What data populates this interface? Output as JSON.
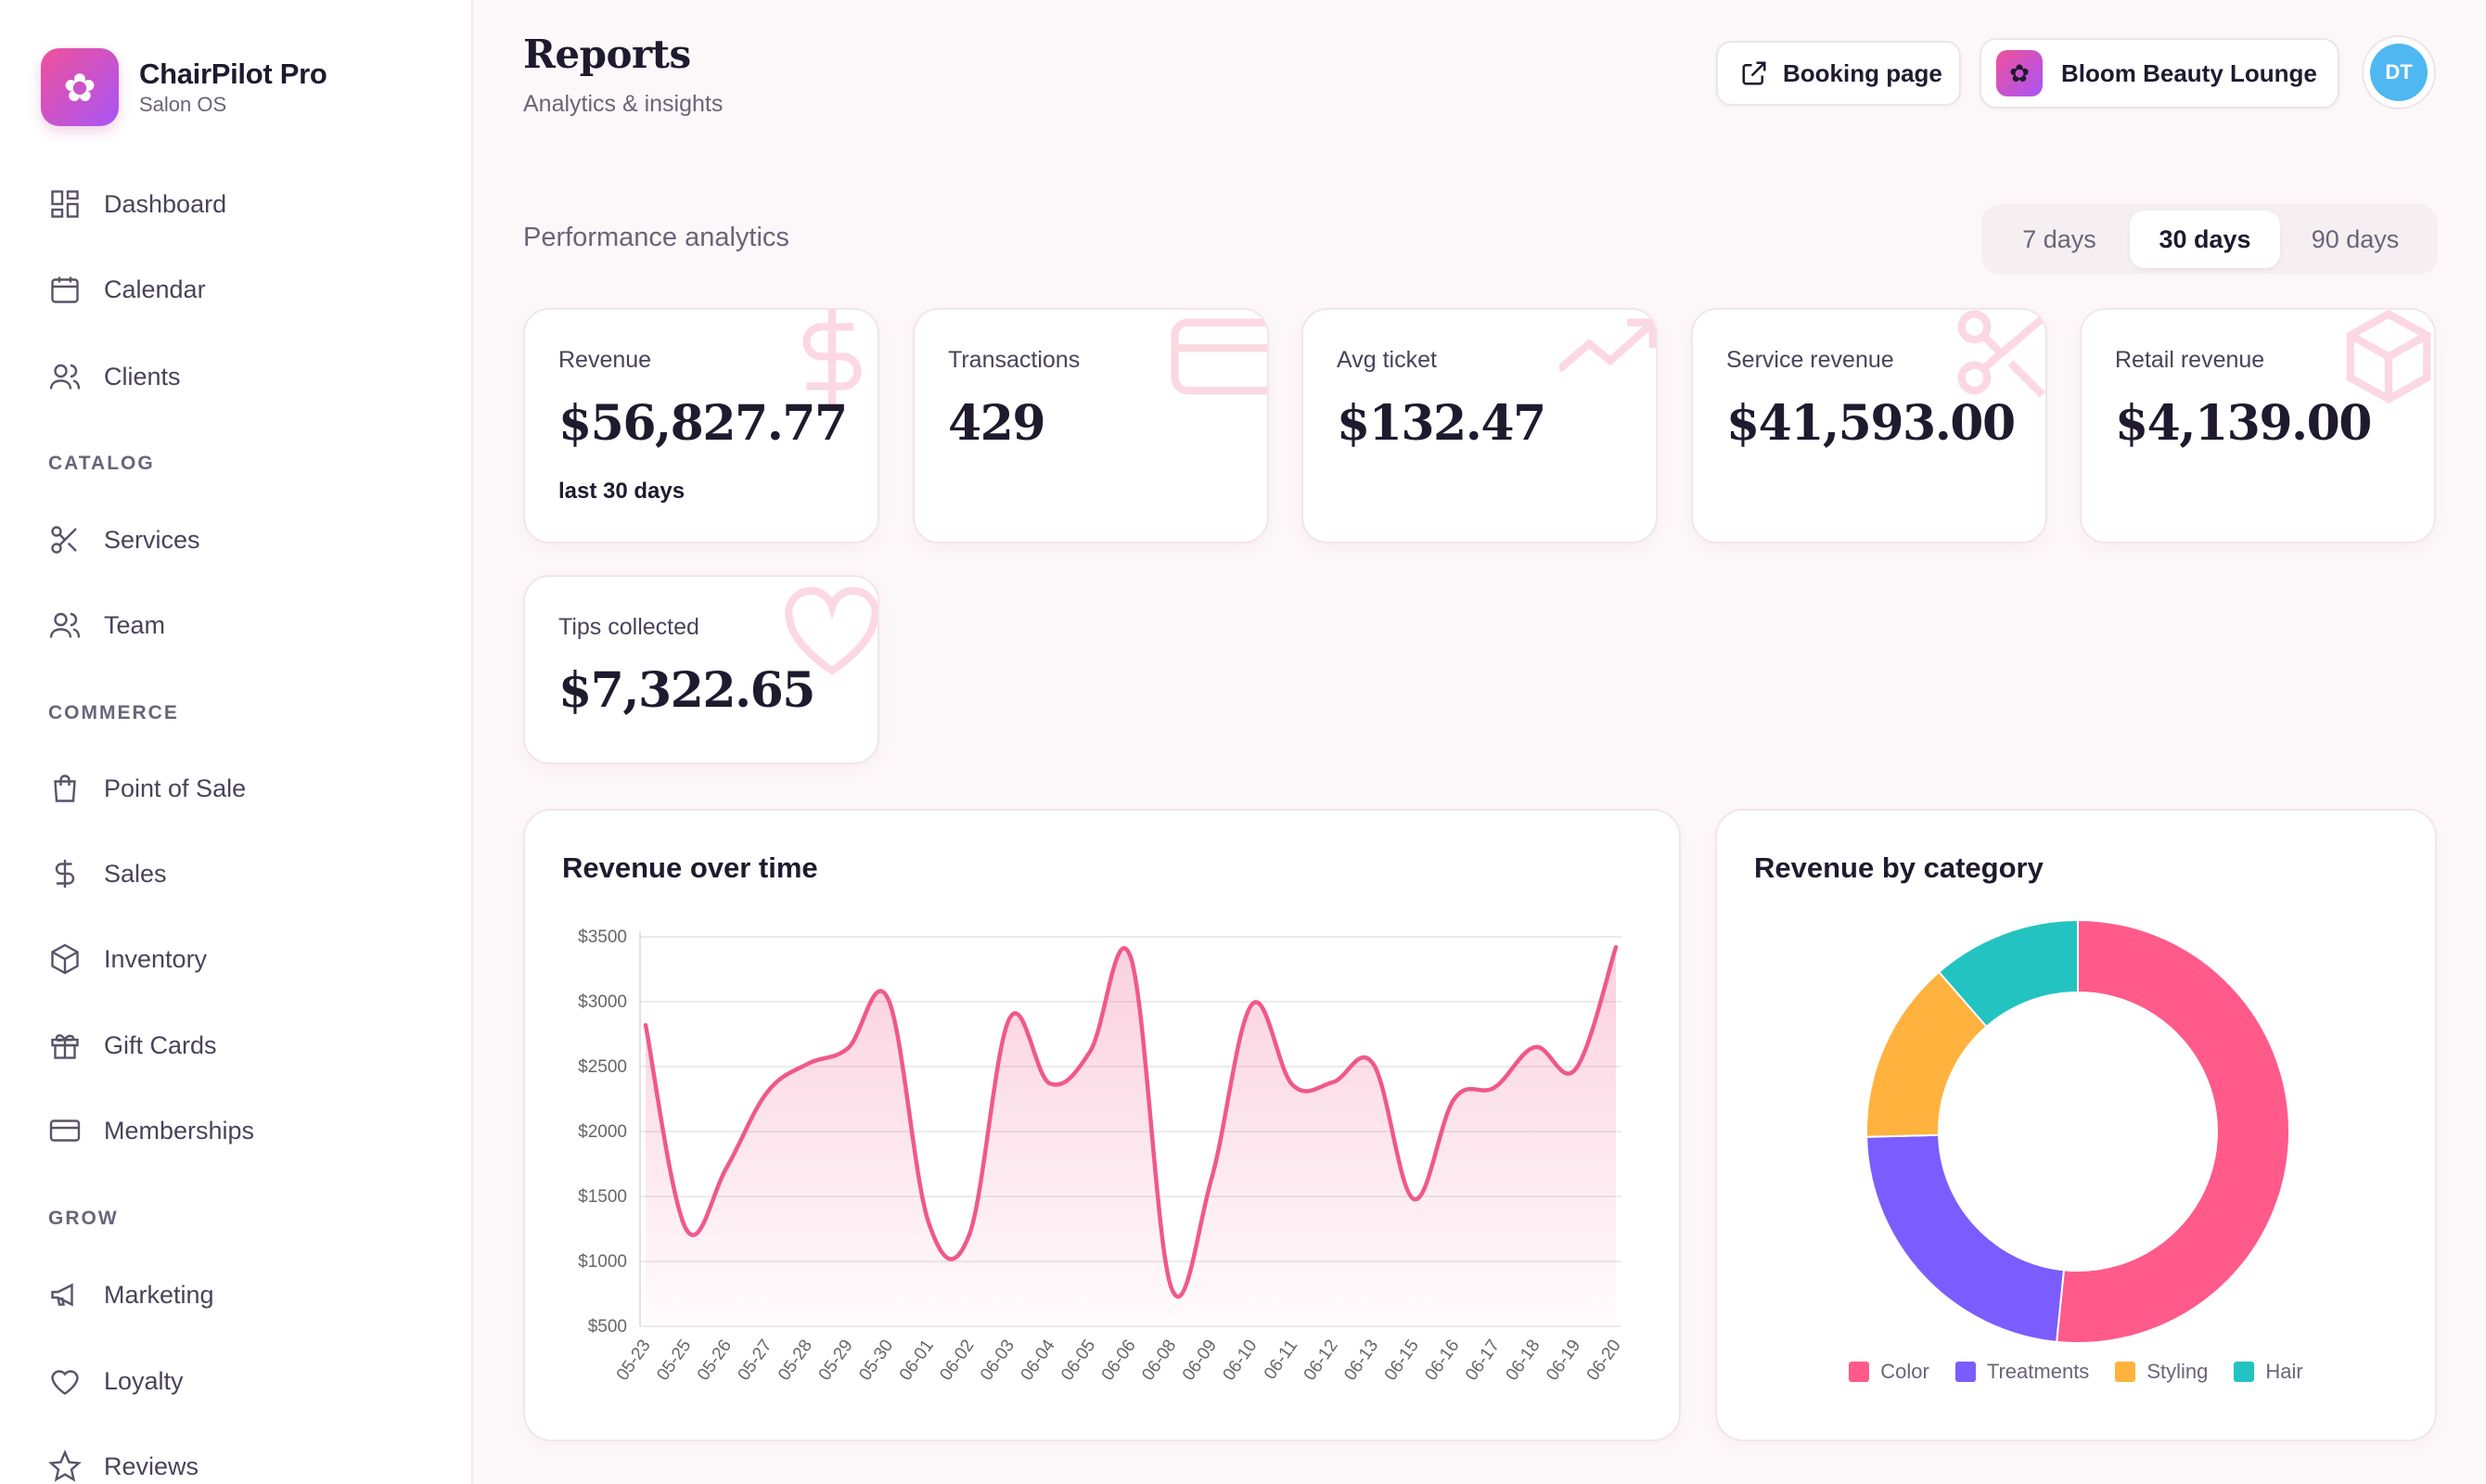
{
  "brand": {
    "name": "ChairPilot Pro",
    "sub": "Salon OS",
    "logo_icon": "flower-icon"
  },
  "sidebar": {
    "items": [
      {
        "label": "Dashboard",
        "icon": "dashboard-icon"
      },
      {
        "label": "Calendar",
        "icon": "calendar-icon"
      },
      {
        "label": "Clients",
        "icon": "users-icon"
      },
      {
        "label": "Services",
        "icon": "scissors-icon"
      },
      {
        "label": "Team",
        "icon": "users-icon"
      },
      {
        "label": "Point of Sale",
        "icon": "shopping-bag-icon"
      },
      {
        "label": "Sales",
        "icon": "dollar-icon"
      },
      {
        "label": "Inventory",
        "icon": "box-icon"
      },
      {
        "label": "Gift Cards",
        "icon": "gift-icon"
      },
      {
        "label": "Memberships",
        "icon": "card-icon"
      },
      {
        "label": "Marketing",
        "icon": "megaphone-icon"
      },
      {
        "label": "Loyalty",
        "icon": "heart-icon"
      },
      {
        "label": "Reviews",
        "icon": "star-icon"
      }
    ],
    "sections": [
      "CATALOG",
      "COMMERCE",
      "GROW"
    ]
  },
  "header": {
    "title": "Reports",
    "subtitle": "Analytics & insights",
    "booking_label": "Booking page",
    "salon_name": "Bloom Beauty Lounge",
    "avatar_initials": "DT"
  },
  "performance": {
    "label": "Performance analytics",
    "ranges": [
      "7 days",
      "30 days",
      "90 days"
    ],
    "selected_range": "30 days"
  },
  "kpis": [
    {
      "label": "Revenue",
      "value": "$56,827.77",
      "note": "last 30 days",
      "icon": "dollar-icon"
    },
    {
      "label": "Transactions",
      "value": "429",
      "icon": "card-icon"
    },
    {
      "label": "Avg ticket",
      "value": "$132.47",
      "icon": "trend-up-icon"
    },
    {
      "label": "Service revenue",
      "value": "$41,593.00",
      "icon": "scissors-icon"
    },
    {
      "label": "Retail revenue",
      "value": "$4,139.00",
      "icon": "box-icon"
    },
    {
      "label": "Tips collected",
      "value": "$7,322.65",
      "icon": "heart-icon"
    }
  ],
  "colors": {
    "accent": "#f0588a",
    "color": "#ff5a8a",
    "treatments": "#7b5cff",
    "styling": "#ffb23d",
    "hair": "#22c3c0"
  },
  "chart_data": [
    {
      "type": "area",
      "title": "Revenue over time",
      "categories": [
        "05-23",
        "05-25",
        "05-26",
        "05-27",
        "05-28",
        "05-29",
        "05-30",
        "06-01",
        "06-02",
        "06-03",
        "06-04",
        "06-05",
        "06-06",
        "06-08",
        "06-09",
        "06-10",
        "06-11",
        "06-12",
        "06-13",
        "06-15",
        "06-16",
        "06-17",
        "06-18",
        "06-19",
        "06-20"
      ],
      "series": [
        {
          "values": [
            2820,
            1250,
            1720,
            2300,
            2520,
            2640,
            3020,
            1300,
            1200,
            2870,
            2370,
            2620,
            3340,
            800,
            1640,
            2980,
            2360,
            2380,
            2520,
            1480,
            2250,
            2340,
            2650,
            2480,
            3420
          ]
        }
      ],
      "yticks": [
        "$3500",
        "$3000",
        "$2500",
        "$2000",
        "$1500",
        "$1000",
        "$500"
      ],
      "ylim": [
        500,
        3500
      ]
    },
    {
      "type": "pie",
      "title": "Revenue by category",
      "categories": [
        "Color",
        "Treatments",
        "Styling",
        "Hair"
      ],
      "values": [
        51.6,
        23.0,
        14.0,
        11.4
      ]
    }
  ]
}
